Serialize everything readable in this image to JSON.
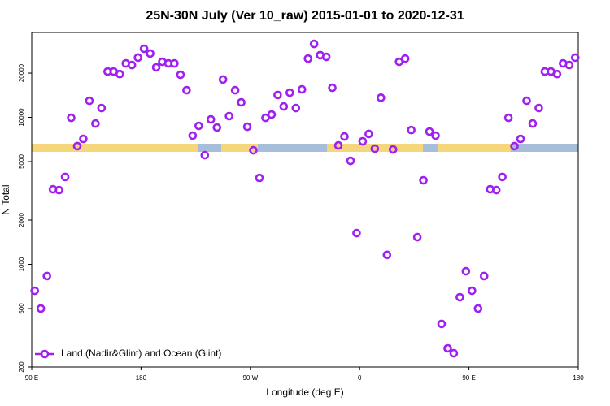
{
  "chart_data": {
    "type": "scatter",
    "title": "25N-30N July (Ver 10_raw)   2015-01-01 to 2020-12-31",
    "x_label": "Longitude (deg E)",
    "y_label": "N Total",
    "series": [
      {
        "name": "Land (Nadir&Glint) and Ocean (Glint)",
        "color": "#a020f0",
        "x": [
          92.5,
          97.5,
          102.5,
          107.5,
          112.5,
          117.5,
          122.5,
          127.5,
          132.5,
          137.5,
          142.5,
          147.5,
          152.5,
          157.5,
          162.5,
          167.5,
          172.5,
          177.5,
          182.5,
          187.5,
          192.5,
          197.5,
          202.5,
          207.5,
          212.5,
          217.5,
          222.5,
          227.5,
          232.5,
          237.5,
          242.5,
          247.5,
          252.5,
          257.5,
          262.5,
          267.5,
          272.5,
          277.5,
          282.5,
          287.5,
          292.5,
          297.5,
          302.5,
          307.5,
          312.5,
          317.5,
          322.5,
          327.5,
          332.5,
          337.5,
          342.5,
          347.5,
          352.5,
          357.5,
          362.5,
          367.5,
          372.5,
          377.5,
          382.5,
          387.5,
          392.5,
          397.5,
          402.5,
          407.5,
          412.5,
          417.5,
          422.5,
          427.5,
          432.5,
          437.5,
          442.5,
          447.5,
          452.5,
          457.5,
          462.5,
          467.5,
          472.5,
          477.5,
          482.5,
          487.5,
          492.5,
          497.5,
          502.5,
          507.5,
          512.5,
          517.5,
          522.5,
          527.5,
          532.5,
          537.5
        ],
        "values": [
          661,
          500,
          832,
          3240,
          3200,
          3930,
          9930,
          6370,
          7130,
          12970,
          9080,
          11570,
          20500,
          20500,
          19700,
          23300,
          22700,
          25500,
          29300,
          27200,
          21900,
          23900,
          23300,
          23300,
          19500,
          15300,
          7510,
          8750,
          5530,
          9680,
          8530,
          18100,
          10190,
          15300,
          12650,
          8630,
          5970,
          3870,
          9930,
          10450,
          14200,
          11860,
          14730,
          11570,
          15500,
          25100,
          31600,
          26500,
          25800,
          15900,
          6440,
          7410,
          5060,
          1630,
          6870,
          7710,
          6120,
          13600,
          1160,
          6050,
          23900,
          25100,
          8200,
          1530,
          3730,
          8000,
          7510,
          393,
          268,
          248,
          597,
          897,
          661,
          500,
          832,
          3240,
          3200,
          3930,
          9930,
          6370,
          7130,
          12970,
          9080,
          11570,
          20500,
          20500,
          19700,
          23300,
          22700,
          25500
        ]
      }
    ],
    "xlim": [
      90,
      540
    ],
    "xticks": [
      {
        "value": 90,
        "label": "90 E"
      },
      {
        "value": 180,
        "label": "180"
      },
      {
        "value": 270,
        "label": "90 W"
      },
      {
        "value": 360,
        "label": "0"
      },
      {
        "value": 450,
        "label": "90 E"
      },
      {
        "value": 540,
        "label": "180"
      }
    ],
    "ylim": [
      200,
      37800
    ],
    "yticks": [
      200,
      500,
      1000,
      2000,
      5000,
      10000,
      20000
    ],
    "y_log": true,
    "legend": "bottom-left",
    "grid": false
  }
}
